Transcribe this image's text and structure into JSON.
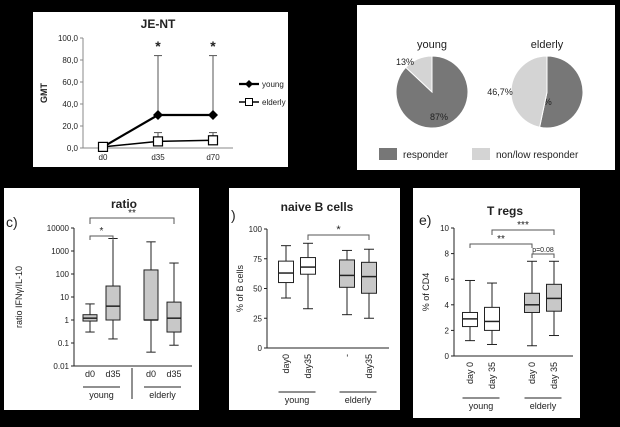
{
  "chart_data": [
    {
      "id": "je",
      "type": "line",
      "title": "JE-NT",
      "ylabel": "GMT",
      "ylim": [
        0,
        100
      ],
      "yticks": [
        "0,0",
        "20,0",
        "40,0",
        "60,0",
        "80,0",
        "100,0"
      ],
      "categories": [
        "d0",
        "d35",
        "d70"
      ],
      "series": [
        {
          "name": "young",
          "values": [
            1,
            30,
            30
          ],
          "err_hi": [
            null,
            84,
            84
          ],
          "marker": "diamond"
        },
        {
          "name": "elderly",
          "values": [
            1,
            6,
            7
          ],
          "err_hi": [
            null,
            14,
            14
          ],
          "marker": "square"
        }
      ],
      "annotations": [
        {
          "x": "d35",
          "text": "*"
        },
        {
          "x": "d70",
          "text": "*"
        }
      ]
    },
    {
      "id": "pies",
      "type": "pie",
      "pies": [
        {
          "title": "young",
          "slices": [
            {
              "label": "87%",
              "value": 87,
              "color": "#777777"
            },
            {
              "label": "13%",
              "value": 13,
              "color": "#d4d4d4"
            }
          ]
        },
        {
          "title": "elderly",
          "slices": [
            {
              "label": "53,3%",
              "value": 53.3,
              "color": "#777777"
            },
            {
              "label": "46,7%",
              "value": 46.7,
              "color": "#d4d4d4"
            }
          ]
        }
      ],
      "legend": [
        {
          "label": "responder",
          "color": "#777777"
        },
        {
          "label": "non/low responder",
          "color": "#d4d4d4"
        }
      ]
    },
    {
      "id": "ratio",
      "type": "box",
      "panel_letter": "c)",
      "title": "ratio",
      "ylabel": "ratio IFNγ/IL-10",
      "log": true,
      "ylim": [
        0.01,
        10000
      ],
      "yticks": [
        "0.01",
        "0.1",
        "1",
        "10",
        "100",
        "1000",
        "10000"
      ],
      "boxes": [
        {
          "label": "d0",
          "min": 0.3,
          "q1": 0.9,
          "median": 1.2,
          "q3": 1.7,
          "max": 5,
          "fill": "#c8c8c8"
        },
        {
          "label": "d35",
          "min": 0.15,
          "q1": 1,
          "median": 4,
          "q3": 30,
          "max": 3500,
          "fill": "#c8c8c8"
        },
        {
          "label": "d0",
          "min": 0.04,
          "q1": 1,
          "median": 1,
          "q3": 150,
          "max": 2500,
          "fill": "#c8c8c8"
        },
        {
          "label": "d35",
          "min": 0.08,
          "q1": 0.3,
          "median": 1.2,
          "q3": 6,
          "max": 300,
          "fill": "#c8c8c8"
        }
      ],
      "groups": [
        "young",
        "elderly"
      ],
      "annotations": [
        {
          "text": "*"
        },
        {
          "text": "**"
        }
      ]
    },
    {
      "id": "naive",
      "type": "box",
      "panel_letter": ")",
      "title": "naive B cells",
      "ylabel": "% of B cells",
      "ylim": [
        0,
        100
      ],
      "yticks": [
        "0",
        "25",
        "50",
        "75",
        "100"
      ],
      "boxes": [
        {
          "label": "day0",
          "min": 42,
          "q1": 55,
          "median": 63,
          "q3": 73,
          "max": 86,
          "fill": "#ffffff"
        },
        {
          "label": "day35",
          "min": 33,
          "q1": 62,
          "median": 68,
          "q3": 76,
          "max": 88,
          "fill": "#ffffff"
        },
        {
          "label": "-",
          "min": 28,
          "q1": 51,
          "median": 61,
          "q3": 74,
          "max": 82,
          "fill": "#c8c8c8"
        },
        {
          "label": "day35",
          "min": 25,
          "q1": 46,
          "median": 60,
          "q3": 72,
          "max": 83,
          "fill": "#c8c8c8"
        }
      ],
      "groups": [
        "young",
        "elderly"
      ],
      "annotations": [
        {
          "text": "*"
        }
      ]
    },
    {
      "id": "treg",
      "type": "box",
      "panel_letter": "e)",
      "title": "T regs",
      "ylabel": "% of CD4",
      "ylim": [
        0,
        10
      ],
      "yticks": [
        "0",
        "2",
        "4",
        "6",
        "8",
        "10"
      ],
      "boxes": [
        {
          "label": "day 0",
          "min": 1.2,
          "q1": 2.3,
          "median": 2.9,
          "q3": 3.4,
          "max": 5.9,
          "fill": "#ffffff"
        },
        {
          "label": "day 35",
          "min": 0.9,
          "q1": 2,
          "median": 2.7,
          "q3": 3.8,
          "max": 5.7,
          "fill": "#ffffff"
        },
        {
          "label": "day 0",
          "min": 0.8,
          "q1": 3.4,
          "median": 4,
          "q3": 4.9,
          "max": 7.4,
          "fill": "#c8c8c8"
        },
        {
          "label": "day 35",
          "min": 1.6,
          "q1": 3.5,
          "median": 4.5,
          "q3": 5.6,
          "max": 7.4,
          "fill": "#c8c8c8"
        }
      ],
      "groups": [
        "young",
        "elderly"
      ],
      "annotations": [
        {
          "text": "***"
        },
        {
          "text": "**"
        },
        {
          "text": "p=0.08"
        }
      ]
    }
  ]
}
